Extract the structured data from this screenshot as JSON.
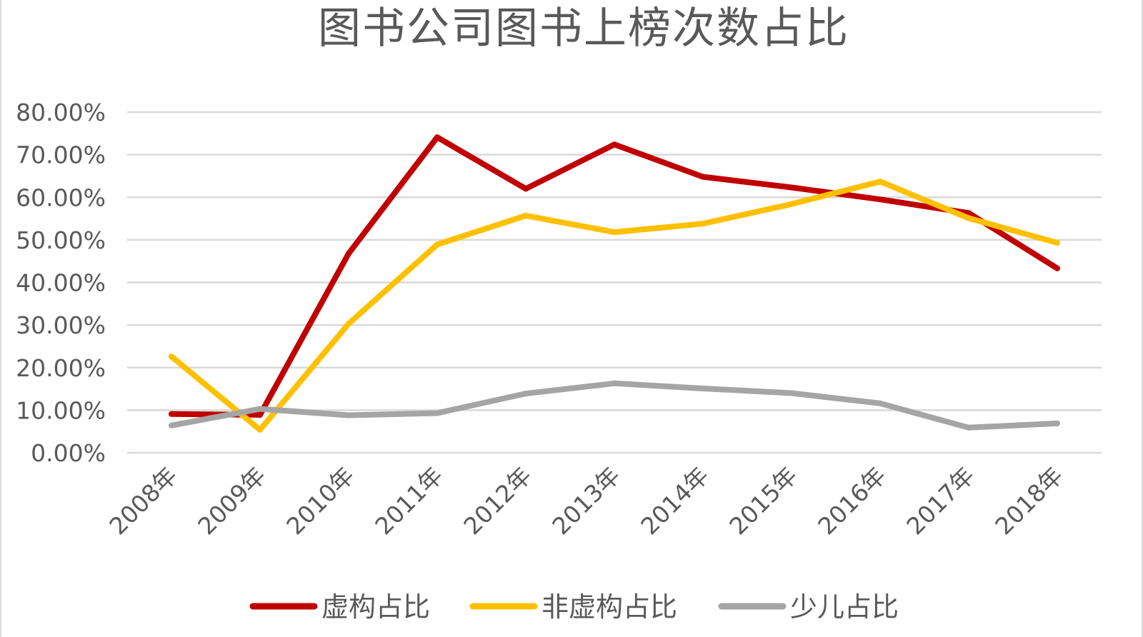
{
  "chart_data": {
    "type": "line",
    "title": "图书公司图书上榜次数占比",
    "categories": [
      "2008年",
      "2009年",
      "2010年",
      "2011年",
      "2012年",
      "2013年",
      "2014年",
      "2015年",
      "2016年",
      "2017年",
      "2018年"
    ],
    "series": [
      {
        "name": "虚构占比",
        "color": "#c00000",
        "values": [
          0.091,
          0.089,
          0.468,
          0.741,
          0.62,
          0.724,
          0.648,
          0.623,
          0.595,
          0.563,
          0.433
        ]
      },
      {
        "name": "非虚构占比",
        "color": "#ffc000",
        "values": [
          0.226,
          0.054,
          0.303,
          0.489,
          0.557,
          0.518,
          0.538,
          0.584,
          0.637,
          0.551,
          0.493
        ]
      },
      {
        "name": "少儿占比",
        "color": "#a5a5a5",
        "values": [
          0.064,
          0.103,
          0.088,
          0.093,
          0.139,
          0.163,
          0.151,
          0.14,
          0.116,
          0.059,
          0.069
        ]
      }
    ],
    "y_ticks": [
      "0.00%",
      "10.00%",
      "20.00%",
      "30.00%",
      "40.00%",
      "50.00%",
      "60.00%",
      "70.00%",
      "80.00%"
    ],
    "ylim": [
      0,
      0.8
    ],
    "grid": true,
    "legend_position": "bottom"
  }
}
